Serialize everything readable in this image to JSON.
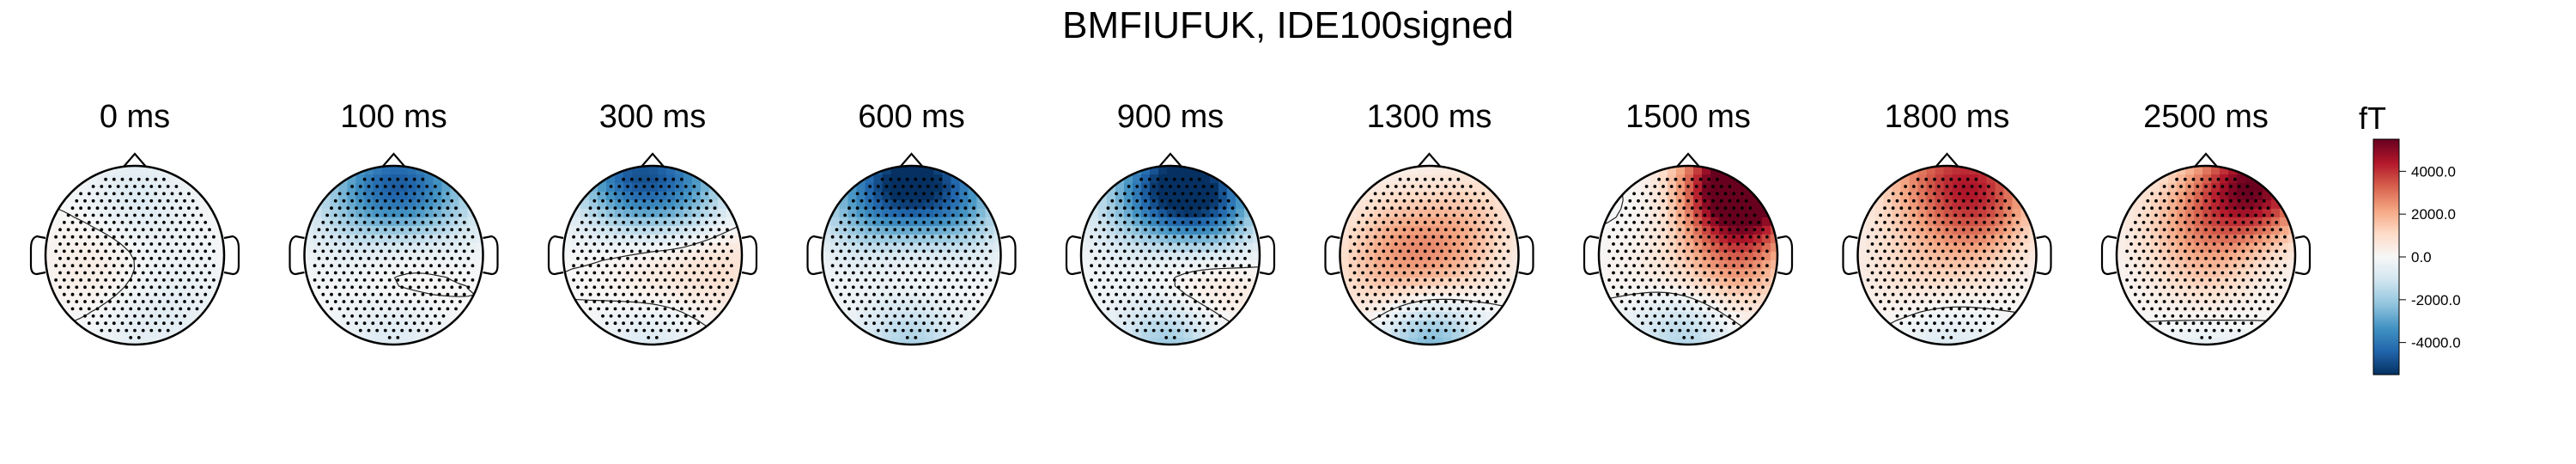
{
  "chart_data": {
    "type": "heatmap",
    "title": "BMFIUFUK, IDE100signed",
    "unit": "fT",
    "colorscale": "RdBu_r",
    "vmin": -5500,
    "vmax": 5500,
    "colorbar_ticks": [
      {
        "value": 4000,
        "label": "4000.0"
      },
      {
        "value": 2000,
        "label": "2000.0"
      },
      {
        "value": 0,
        "label": "0.0"
      },
      {
        "value": -2000,
        "label": "-2000.0"
      },
      {
        "value": -4000,
        "label": "-4000.0"
      }
    ],
    "topomaps": [
      {
        "label": "0 ms",
        "time_ms": 0,
        "sources": [
          [
            0.0,
            -0.6,
            -800
          ],
          [
            -0.35,
            0.1,
            600
          ],
          [
            0.0,
            0.85,
            -500
          ],
          [
            0.5,
            0.5,
            -400
          ]
        ]
      },
      {
        "label": "100 ms",
        "time_ms": 100,
        "sources": [
          [
            0.0,
            -0.85,
            -3200
          ],
          [
            0.5,
            -0.7,
            -1800
          ],
          [
            -0.5,
            -0.6,
            -1400
          ],
          [
            0.1,
            0.25,
            600
          ],
          [
            0.0,
            0.85,
            -900
          ]
        ]
      },
      {
        "label": "300 ms",
        "time_ms": 300,
        "sources": [
          [
            -0.3,
            -0.9,
            -3800
          ],
          [
            0.35,
            -0.8,
            -2800
          ],
          [
            0.0,
            0.2,
            800
          ],
          [
            0.8,
            0.1,
            900
          ],
          [
            0.0,
            0.9,
            -900
          ]
        ]
      },
      {
        "label": "600 ms",
        "time_ms": 600,
        "sources": [
          [
            0.0,
            -0.9,
            -4600
          ],
          [
            -0.55,
            -0.6,
            -2200
          ],
          [
            0.55,
            -0.6,
            -2400
          ],
          [
            0.1,
            0.3,
            600
          ],
          [
            0.0,
            0.95,
            -1900
          ]
        ]
      },
      {
        "label": "900 ms",
        "time_ms": 900,
        "sources": [
          [
            0.1,
            -0.85,
            -4300
          ],
          [
            0.5,
            -0.55,
            -3000
          ],
          [
            -0.4,
            -0.6,
            -1600
          ],
          [
            0.15,
            0.35,
            900
          ],
          [
            0.0,
            0.95,
            -2300
          ],
          [
            0.6,
            0.3,
            600
          ]
        ]
      },
      {
        "label": "1300 ms",
        "time_ms": 1300,
        "sources": [
          [
            0.1,
            0.1,
            1600
          ],
          [
            -0.4,
            -0.2,
            1200
          ],
          [
            0.5,
            -0.4,
            1100
          ],
          [
            -0.6,
            0.3,
            900
          ],
          [
            0.0,
            0.95,
            -2700
          ]
        ]
      },
      {
        "label": "1500 ms",
        "time_ms": 1500,
        "sources": [
          [
            0.7,
            -0.75,
            5200
          ],
          [
            0.4,
            -0.8,
            3000
          ],
          [
            0.55,
            0.1,
            2000
          ],
          [
            -0.2,
            0.2,
            900
          ],
          [
            -0.3,
            -0.4,
            -300
          ],
          [
            -0.05,
            0.85,
            -1900
          ]
        ]
      },
      {
        "label": "1800 ms",
        "time_ms": 1800,
        "sources": [
          [
            0.3,
            -0.85,
            2800
          ],
          [
            -0.3,
            -0.9,
            1700
          ],
          [
            0.5,
            -0.5,
            1400
          ],
          [
            0.1,
            0.0,
            900
          ],
          [
            -0.5,
            0.1,
            700
          ],
          [
            0.0,
            0.95,
            -800
          ]
        ]
      },
      {
        "label": "2500 ms",
        "time_ms": 2500,
        "sources": [
          [
            0.65,
            -0.8,
            3800
          ],
          [
            0.3,
            -0.75,
            1900
          ],
          [
            0.0,
            -0.3,
            1100
          ],
          [
            -0.4,
            -0.4,
            700
          ],
          [
            0.0,
            0.3,
            900
          ],
          [
            0.0,
            0.95,
            -700
          ]
        ]
      }
    ]
  }
}
